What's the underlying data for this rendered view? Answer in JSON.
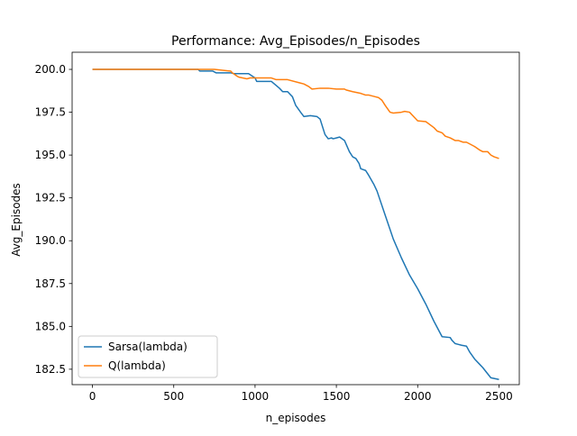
{
  "chart_data": {
    "type": "line",
    "title": "Performance: Avg_Episodes/n_Episodes",
    "xlabel": "n_episodes",
    "ylabel": "Avg_Episodes",
    "xlim": [
      -125,
      2625
    ],
    "ylim": [
      181.6,
      201.0
    ],
    "xticks": [
      0,
      500,
      1000,
      1500,
      2000,
      2500
    ],
    "xtick_labels": [
      "0",
      "500",
      "1000",
      "1500",
      "2000",
      "2500"
    ],
    "yticks": [
      182.5,
      185.0,
      187.5,
      190.0,
      192.5,
      195.0,
      197.5,
      200.0
    ],
    "ytick_labels": [
      "182.5",
      "185.0",
      "187.5",
      "190.0",
      "192.5",
      "195.0",
      "197.5",
      "200.0"
    ],
    "grid": false,
    "legend_position": "lower-left",
    "series": [
      {
        "name": "Sarsa(lambda)",
        "color": "#1f77b4",
        "x": [
          0,
          650,
          660,
          740,
          760,
          850,
          870,
          960,
          1000,
          1010,
          1100,
          1150,
          1170,
          1200,
          1230,
          1250,
          1280,
          1300,
          1340,
          1380,
          1400,
          1430,
          1450,
          1470,
          1480,
          1500,
          1520,
          1550,
          1580,
          1600,
          1620,
          1640,
          1650,
          1680,
          1700,
          1730,
          1750,
          1800,
          1850,
          1900,
          1950,
          2000,
          2050,
          2100,
          2150,
          2200,
          2210,
          2230,
          2250,
          2270,
          2300,
          2320,
          2350,
          2380,
          2400,
          2450,
          2500
        ],
        "y": [
          200.0,
          200.0,
          199.9,
          199.9,
          199.8,
          199.8,
          199.75,
          199.75,
          199.5,
          199.3,
          199.3,
          198.9,
          198.7,
          198.7,
          198.4,
          197.9,
          197.5,
          197.25,
          197.3,
          197.25,
          197.1,
          196.2,
          195.95,
          196.0,
          195.95,
          196.0,
          196.05,
          195.85,
          195.2,
          194.9,
          194.8,
          194.5,
          194.2,
          194.1,
          193.8,
          193.3,
          192.9,
          191.5,
          190.1,
          189.0,
          188.0,
          187.2,
          186.3,
          185.3,
          184.4,
          184.35,
          184.2,
          184.0,
          183.95,
          183.9,
          183.85,
          183.5,
          183.1,
          182.8,
          182.6,
          182.0,
          181.9
        ]
      },
      {
        "name": "Q(lambda)",
        "color": "#ff7f0e",
        "x": [
          0,
          750,
          800,
          850,
          860,
          890,
          900,
          950,
          970,
          1000,
          1100,
          1130,
          1200,
          1280,
          1300,
          1330,
          1350,
          1400,
          1450,
          1500,
          1550,
          1560,
          1600,
          1650,
          1680,
          1700,
          1740,
          1760,
          1780,
          1800,
          1830,
          1850,
          1900,
          1920,
          1950,
          1970,
          2000,
          2050,
          2100,
          2120,
          2150,
          2170,
          2200,
          2230,
          2250,
          2280,
          2300,
          2320,
          2350,
          2380,
          2400,
          2430,
          2450,
          2470,
          2500
        ],
        "y": [
          200.0,
          200.0,
          199.95,
          199.9,
          199.8,
          199.6,
          199.55,
          199.45,
          199.5,
          199.5,
          199.5,
          199.4,
          199.4,
          199.2,
          199.15,
          199.0,
          198.85,
          198.9,
          198.9,
          198.85,
          198.85,
          198.8,
          198.7,
          198.6,
          198.5,
          198.5,
          198.4,
          198.35,
          198.2,
          197.9,
          197.5,
          197.45,
          197.5,
          197.55,
          197.5,
          197.3,
          197.0,
          196.95,
          196.6,
          196.4,
          196.3,
          196.1,
          196.0,
          195.85,
          195.85,
          195.75,
          195.75,
          195.65,
          195.5,
          195.3,
          195.2,
          195.2,
          195.0,
          194.9,
          194.8
        ]
      }
    ]
  }
}
